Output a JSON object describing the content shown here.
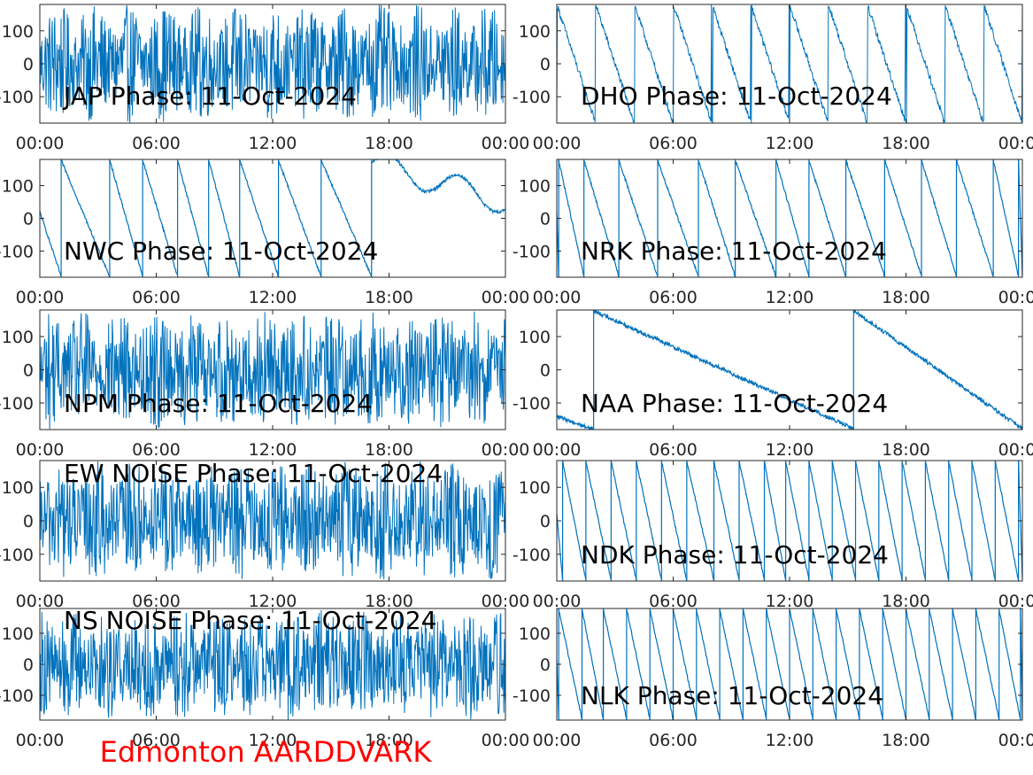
{
  "footer_label": "Edmonton AARDDVARK",
  "colors": {
    "trace": "#0072BD",
    "axis": "#262626",
    "footer": "#ff0000"
  },
  "chart_data": [
    {
      "type": "line",
      "title": "JAP Phase: 11-Oct-2024",
      "behavior": "noisy",
      "x_ticks": [
        "00:00",
        "06:00",
        "12:00",
        "18:00",
        "00:00"
      ],
      "y_ticks": [
        "100",
        "0",
        "-100"
      ],
      "xlim": [
        0,
        24
      ],
      "ylim": [
        -180,
        180
      ]
    },
    {
      "type": "line",
      "title": "DHO Phase: 11-Oct-2024",
      "behavior": "fast-wrap",
      "x_ticks": [
        "00:00",
        "06:00",
        "12:00",
        "18:00",
        "00:00"
      ],
      "y_ticks": [
        "100",
        "0",
        "-100"
      ],
      "xlim": [
        0,
        24
      ],
      "ylim": [
        -180,
        180
      ]
    },
    {
      "type": "line",
      "title": "NWC Phase: 11-Oct-2024",
      "behavior": "sawtooth-then-drift",
      "wrap_hours": [
        1.1,
        3.6,
        5.3,
        7.1,
        8.7,
        10.3,
        12.3,
        14.5,
        17.1
      ],
      "x_ticks": [
        "00:00",
        "06:00",
        "12:00",
        "18:00",
        "00:00"
      ],
      "y_ticks": [
        "100",
        "0",
        "-100"
      ],
      "xlim": [
        0,
        24
      ],
      "ylim": [
        -180,
        180
      ]
    },
    {
      "type": "line",
      "title": "NRK Phase: 11-Oct-2024",
      "behavior": "sawtooth",
      "wrap_hours": [
        0.1,
        1.4,
        3.2,
        5.2,
        7.3,
        9.2,
        11.3,
        13.0,
        14.9,
        16.9,
        18.8,
        20.6,
        22.5,
        23.8
      ],
      "x_ticks": [
        "00:00",
        "06:00",
        "12:00",
        "18:00",
        "00:00"
      ],
      "y_ticks": [
        "100",
        "0",
        "-100"
      ],
      "xlim": [
        0,
        24
      ],
      "ylim": [
        -180,
        180
      ]
    },
    {
      "type": "line",
      "title": "NPM Phase: 11-Oct-2024",
      "behavior": "noisy",
      "x_ticks": [
        "00:00",
        "06:00",
        "12:00",
        "18:00",
        "00:00"
      ],
      "y_ticks": [
        "100",
        "0",
        "-100"
      ],
      "xlim": [
        0,
        24
      ],
      "ylim": [
        -180,
        180
      ]
    },
    {
      "type": "line",
      "title": "NAA Phase: 11-Oct-2024",
      "behavior": "slow-drift",
      "wrap_hours": [
        1.9,
        15.3
      ],
      "x_ticks": [
        "00:00",
        "06:00",
        "12:00",
        "18:00",
        "00:00"
      ],
      "y_ticks": [
        "100",
        "0",
        "-100"
      ],
      "xlim": [
        0,
        24
      ],
      "ylim": [
        -180,
        180
      ]
    },
    {
      "type": "line",
      "title": "EW NOISE Phase: 11-Oct-2024",
      "behavior": "noisy",
      "x_ticks": [
        "00:00",
        "06:00",
        "12:00",
        "18:00",
        "00:00"
      ],
      "y_ticks": [
        "100",
        "0",
        "-100"
      ],
      "xlim": [
        0,
        24
      ],
      "ylim": [
        -180,
        180
      ]
    },
    {
      "type": "line",
      "title": "NDK Phase: 11-Oct-2024",
      "behavior": "sawtooth",
      "wrap_hours": [
        0.3,
        1.5,
        2.8,
        4.1,
        5.4,
        6.7,
        8.1,
        9.4,
        10.7,
        11.8,
        13.0,
        14.2,
        15.4,
        16.6,
        17.8,
        19.0,
        20.2,
        21.4,
        22.6,
        23.8
      ],
      "x_ticks": [
        "00:00",
        "06:00",
        "12:00",
        "18:00",
        "00:00"
      ],
      "y_ticks": [
        "100",
        "0",
        "-100"
      ],
      "xlim": [
        0,
        24
      ],
      "ylim": [
        -180,
        180
      ]
    },
    {
      "type": "line",
      "title": "NS NOISE Phase: 11-Oct-2024",
      "behavior": "noisy",
      "x_ticks": [
        "00:00",
        "06:00",
        "12:00",
        "18:00",
        "00:00"
      ],
      "y_ticks": [
        "100",
        "0",
        "-100"
      ],
      "xlim": [
        0,
        24
      ],
      "ylim": [
        -180,
        180
      ]
    },
    {
      "type": "line",
      "title": "NLK Phase: 11-Oct-2024",
      "behavior": "sawtooth",
      "wrap_hours": [
        0.1,
        1.3,
        2.4,
        3.6,
        4.8,
        6.0,
        7.2,
        8.4,
        9.6,
        10.8,
        12.0,
        13.2,
        14.4,
        15.6,
        16.8,
        18.0,
        19.2,
        20.4,
        21.6,
        22.8,
        23.9
      ],
      "x_ticks": [
        "00:00",
        "06:00",
        "12:00",
        "18:00",
        "00:00"
      ],
      "y_ticks": [
        "100",
        "0",
        "-100"
      ],
      "xlim": [
        0,
        24
      ],
      "ylim": [
        -180,
        180
      ]
    }
  ]
}
